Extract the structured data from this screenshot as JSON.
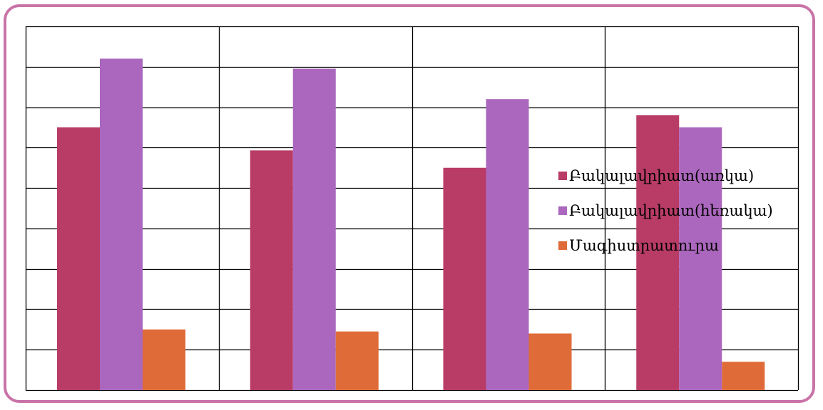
{
  "chart_data": {
    "type": "bar",
    "title": "",
    "xlabel": "",
    "ylabel": "",
    "categories": [
      "",
      "",
      "",
      ""
    ],
    "ylim": [
      0,
      9
    ],
    "y_gridlines": [
      0,
      1,
      2,
      3,
      4,
      5,
      6,
      7,
      8,
      9
    ],
    "grid": true,
    "legend_position": "right",
    "series": [
      {
        "name": "Բակալավրիատ(առկա)",
        "color": "#b93c66",
        "values": [
          6.5,
          5.93,
          5.5,
          6.8
        ]
      },
      {
        "name": "Բակալավրիատ(հեռակա)",
        "color": "#ab67bd",
        "values": [
          8.2,
          7.95,
          7.2,
          6.5
        ]
      },
      {
        "name": "Մագիստրատուրա",
        "color": "#df6b38",
        "values": [
          1.5,
          1.45,
          1.4,
          0.7
        ]
      }
    ]
  },
  "colors": {
    "frame_border": "#c973a8",
    "grid_line": "#000000"
  }
}
